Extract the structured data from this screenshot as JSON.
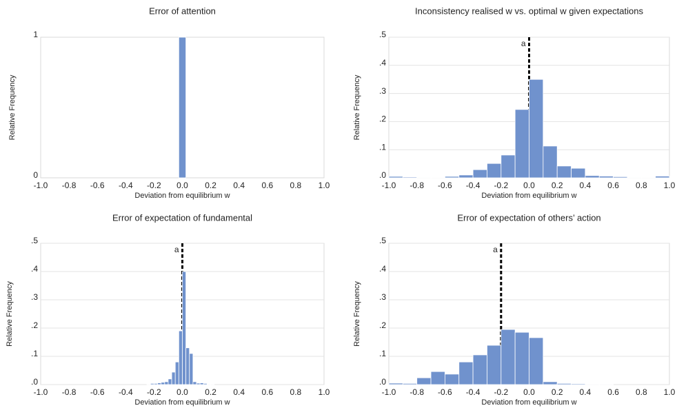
{
  "chart_data": [
    {
      "type": "histogram",
      "title": "Error of attention",
      "x_label": "Deviation from equilibrium w",
      "y_label": "Relative Frequency",
      "color": "#7092cd",
      "grid": false,
      "bins": [
        -0.025,
        0.025
      ],
      "values": [
        1
      ],
      "xlim": [
        -1,
        1
      ],
      "ylim": [
        0,
        1
      ],
      "xticks": [
        {
          "value": -1,
          "label": "-1.0"
        },
        {
          "value": -0.8,
          "label": "-0.8"
        },
        {
          "value": -0.6,
          "label": "-0.6"
        },
        {
          "value": -0.4,
          "label": "-0.4"
        },
        {
          "value": -0.2,
          "label": "-0.2"
        },
        {
          "value": 0,
          "label": "0.0"
        },
        {
          "value": 0.2,
          "label": "0.2"
        },
        {
          "value": 0.4,
          "label": "0.4"
        },
        {
          "value": 0.6,
          "label": "0.6"
        },
        {
          "value": 0.8,
          "label": "0.8"
        },
        {
          "value": 1,
          "label": "1.0"
        }
      ],
      "yticks": [
        0,
        1
      ],
      "annotations": []
    },
    {
      "type": "histogram",
      "title": "Inconsistency realised w vs. optimal w given expectations",
      "x_label": "Deviation from equilibrium w",
      "y_label": "Relative Frequency",
      "color": "#7092cd",
      "grid": true,
      "bins": [
        -1,
        -0.9,
        -0.8,
        -0.7,
        -0.6,
        -0.5,
        -0.4,
        -0.3,
        -0.2,
        -0.1,
        0,
        0.1,
        0.2,
        0.3,
        0.4,
        0.5,
        0.6,
        0.7,
        0.8,
        0.9,
        1
      ],
      "values": [
        0.005,
        0.003,
        0.002,
        0.001,
        0.005,
        0.01,
        0.029,
        0.051,
        0.081,
        0.243,
        0.35,
        0.113,
        0.042,
        0.034,
        0.008,
        0.006,
        0.004,
        0.002,
        0.001,
        0.006
      ],
      "xlim": [
        -1,
        1
      ],
      "ylim": [
        0,
        0.5
      ],
      "xticks": [
        {
          "value": -1,
          "label": "-1.0"
        },
        {
          "value": -0.8,
          "label": "-0.8"
        },
        {
          "value": -0.6,
          "label": "-0.6"
        },
        {
          "value": -0.4,
          "label": "-0.4"
        },
        {
          "value": -0.2,
          "label": "-0.2"
        },
        {
          "value": 0,
          "label": "0.0"
        },
        {
          "value": 0.2,
          "label": "0.2"
        },
        {
          "value": 0.4,
          "label": "0.4"
        },
        {
          "value": 0.6,
          "label": "0.6"
        },
        {
          "value": 0.8,
          "label": "0.8"
        },
        {
          "value": 1,
          "label": "1.0"
        }
      ],
      "yticks": [
        {
          "value": 0,
          "label": ".0"
        },
        {
          "value": 0.1,
          "label": ".1"
        },
        {
          "value": 0.2,
          "label": ".2"
        },
        {
          "value": 0.3,
          "label": ".3"
        },
        {
          "value": 0.4,
          "label": ".4"
        },
        {
          "value": 0.5,
          "label": ".5"
        }
      ],
      "annotations": [
        {
          "text": "a",
          "x": 0
        }
      ]
    },
    {
      "type": "histogram",
      "title": "Error of expectation of fundamental",
      "x_label": "Deviation from equilibrium w",
      "y_label": "Relative Frequency",
      "color": "#7092cd",
      "grid": true,
      "bins": [
        -0.25,
        -0.225,
        -0.2,
        -0.175,
        -0.15,
        -0.125,
        -0.1,
        -0.075,
        -0.05,
        -0.025,
        0,
        0.025,
        0.05,
        0.075,
        0.1,
        0.125,
        0.15,
        0.175,
        0.2,
        0.225
      ],
      "values": [
        0.002,
        0.004,
        0.004,
        0.006,
        0.008,
        0.01,
        0.02,
        0.044,
        0.08,
        0.19,
        0.4,
        0.13,
        0.11,
        0.01,
        0.005,
        0.006,
        0.004,
        0.002,
        0.002
      ],
      "xlim": [
        -1,
        1
      ],
      "ylim": [
        0,
        0.5
      ],
      "xticks": [
        {
          "value": -1,
          "label": "-1.0"
        },
        {
          "value": -0.8,
          "label": "-0.8"
        },
        {
          "value": -0.6,
          "label": "-0.6"
        },
        {
          "value": -0.4,
          "label": "-0.4"
        },
        {
          "value": -0.2,
          "label": "-0.2"
        },
        {
          "value": 0,
          "label": "0.0"
        },
        {
          "value": 0.2,
          "label": "0.2"
        },
        {
          "value": 0.4,
          "label": "0.4"
        },
        {
          "value": 0.6,
          "label": "0.6"
        },
        {
          "value": 0.8,
          "label": "0.8"
        },
        {
          "value": 1,
          "label": "1.0"
        }
      ],
      "yticks": [
        {
          "value": 0,
          "label": ".0"
        },
        {
          "value": 0.1,
          "label": ".1"
        },
        {
          "value": 0.2,
          "label": ".2"
        },
        {
          "value": 0.3,
          "label": ".3"
        },
        {
          "value": 0.4,
          "label": ".4"
        },
        {
          "value": 0.5,
          "label": ".5"
        }
      ],
      "annotations": [
        {
          "text": "a",
          "x": 0
        }
      ]
    },
    {
      "type": "histogram",
      "title": "Error of expectation of others’ action",
      "x_label": "Deviation from equilibrium w",
      "y_label": "Relative Frequency",
      "color": "#7092cd",
      "grid": true,
      "bins": [
        -1,
        -0.9,
        -0.8,
        -0.7,
        -0.6,
        -0.5,
        -0.4,
        -0.3,
        -0.2,
        -0.1,
        0,
        0.1,
        0.2,
        0.3,
        0.4,
        0.5,
        0.6
      ],
      "values": [
        0.005,
        0.004,
        0.024,
        0.046,
        0.037,
        0.08,
        0.105,
        0.139,
        0.195,
        0.185,
        0.166,
        0.01,
        0.004,
        0.003,
        0.002,
        0.002
      ],
      "xlim": [
        -1,
        1
      ],
      "ylim": [
        0,
        0.5
      ],
      "xticks": [
        {
          "value": -1,
          "label": "-1.0"
        },
        {
          "value": -0.8,
          "label": "-0.8"
        },
        {
          "value": -0.6,
          "label": "-0.6"
        },
        {
          "value": -0.4,
          "label": "-0.4"
        },
        {
          "value": -0.2,
          "label": "-0.2"
        },
        {
          "value": 0,
          "label": "0.0"
        },
        {
          "value": 0.2,
          "label": "0.2"
        },
        {
          "value": 0.4,
          "label": "0.4"
        },
        {
          "value": 0.6,
          "label": "0.6"
        },
        {
          "value": 0.8,
          "label": "0.8"
        },
        {
          "value": 1,
          "label": "1.0"
        }
      ],
      "yticks": [
        {
          "value": 0,
          "label": ".0"
        },
        {
          "value": 0.1,
          "label": ".1"
        },
        {
          "value": 0.2,
          "label": ".2"
        },
        {
          "value": 0.3,
          "label": ".3"
        },
        {
          "value": 0.4,
          "label": ".4"
        },
        {
          "value": 0.5,
          "label": ".5"
        }
      ],
      "annotations": [
        {
          "text": "a",
          "x": -0.2
        }
      ]
    }
  ]
}
